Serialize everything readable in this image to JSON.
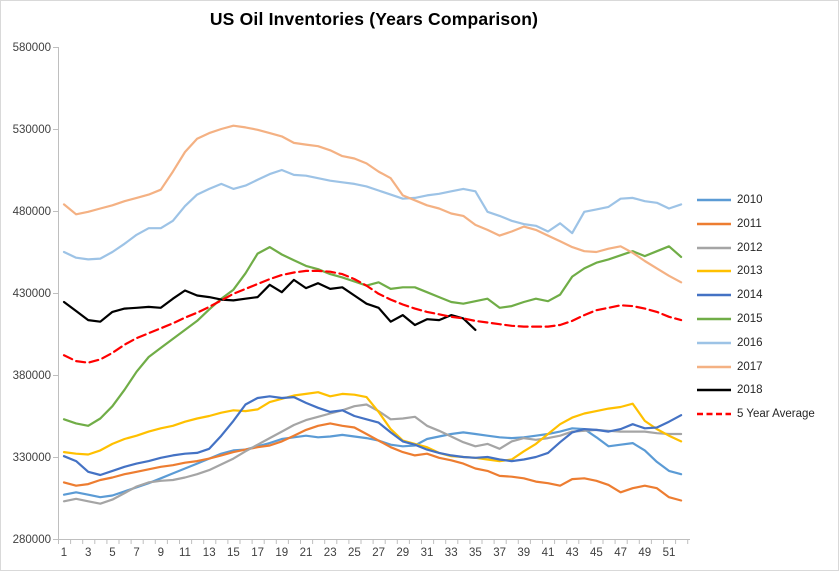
{
  "title": "US Oil Inventories (Years Comparison)",
  "chart_data": {
    "type": "line",
    "title": "US Oil Inventories (Years Comparison)",
    "xlabel": "",
    "ylabel": "",
    "x_tick_labels": [
      1,
      3,
      5,
      7,
      9,
      11,
      13,
      15,
      17,
      19,
      21,
      23,
      25,
      27,
      29,
      31,
      33,
      35,
      37,
      39,
      41,
      43,
      45,
      47,
      49,
      51
    ],
    "x_range": [
      1,
      52
    ],
    "y_axis": {
      "min": 280000,
      "max": 580000,
      "step": 50000,
      "tick_labels": [
        "280000",
        "330000",
        "380000",
        "430000",
        "480000",
        "530000",
        "580000"
      ]
    },
    "grid": false,
    "legend_position": "right",
    "axis_color": "#bfbfbf",
    "label_color": "#404040",
    "series": [
      {
        "name": "2010",
        "color": "#5B9BD5",
        "style": "solid",
        "values": [
          307000,
          308500,
          307000,
          305500,
          306500,
          309000,
          311500,
          314000,
          317000,
          320000,
          323000,
          326000,
          329000,
          332000,
          334000,
          334500,
          336500,
          338500,
          341000,
          342000,
          343000,
          342000,
          342500,
          343500,
          342500,
          341500,
          340000,
          337500,
          336500,
          337000,
          341000,
          342500,
          344000,
          345000,
          344000,
          343000,
          342000,
          341500,
          342000,
          343000,
          344000,
          345500,
          347500,
          347000,
          342000,
          336500,
          337500,
          338500,
          334000,
          327000,
          321500,
          319500
        ]
      },
      {
        "name": "2011",
        "color": "#ED7D31",
        "style": "solid",
        "values": [
          314500,
          312500,
          313500,
          316000,
          317500,
          319500,
          321000,
          322500,
          324000,
          325000,
          326500,
          327500,
          329000,
          331000,
          333000,
          334500,
          336000,
          337000,
          339500,
          343000,
          346500,
          349000,
          350500,
          349000,
          348000,
          344000,
          340000,
          336000,
          333000,
          331000,
          332000,
          329500,
          328000,
          326000,
          323000,
          321500,
          318500,
          318000,
          317000,
          315000,
          314000,
          312500,
          316500,
          317000,
          315500,
          313000,
          308500,
          311000,
          312500,
          311000,
          305500,
          303500
        ]
      },
      {
        "name": "2012",
        "color": "#A5A5A5",
        "style": "solid",
        "values": [
          303000,
          304500,
          303000,
          301500,
          304000,
          308000,
          312000,
          314500,
          315500,
          316000,
          317500,
          319500,
          322000,
          325500,
          329000,
          333500,
          337500,
          341500,
          345500,
          349500,
          352500,
          354500,
          356500,
          358500,
          361000,
          362000,
          358000,
          353000,
          353500,
          354500,
          349000,
          346000,
          342500,
          339000,
          336500,
          338000,
          335000,
          339500,
          341500,
          340500,
          341500,
          343000,
          345500,
          346000,
          346500,
          346000,
          345500,
          345500,
          345500,
          344500,
          344000,
          344000
        ]
      },
      {
        "name": "2013",
        "color": "#FFC000",
        "style": "solid",
        "values": [
          333000,
          332000,
          331500,
          334000,
          338000,
          341000,
          343000,
          345500,
          347500,
          349000,
          351500,
          353500,
          355000,
          357000,
          358500,
          358000,
          359000,
          363500,
          365500,
          367500,
          368500,
          369500,
          367000,
          368500,
          368000,
          366500,
          357500,
          347000,
          340000,
          338000,
          336000,
          332500,
          330500,
          330000,
          329500,
          328500,
          327500,
          328500,
          333500,
          338000,
          344000,
          350000,
          354000,
          356500,
          358000,
          359500,
          360500,
          362500,
          352000,
          347000,
          343000,
          339500
        ]
      },
      {
        "name": "2014",
        "color": "#4472C4",
        "style": "solid",
        "values": [
          330500,
          327500,
          321000,
          319000,
          321500,
          324000,
          326000,
          327500,
          329500,
          331000,
          332000,
          332500,
          335000,
          343000,
          352000,
          362000,
          366000,
          367000,
          366000,
          366500,
          363000,
          360000,
          357500,
          358500,
          355000,
          353000,
          351000,
          345000,
          339500,
          337500,
          334500,
          332500,
          331000,
          330000,
          329500,
          330000,
          328500,
          327500,
          328500,
          330000,
          332500,
          339000,
          345000,
          347000,
          346500,
          345500,
          347000,
          350000,
          347500,
          348000,
          351500,
          355500
        ]
      },
      {
        "name": "2015",
        "color": "#70AD47",
        "style": "solid",
        "values": [
          353000,
          350500,
          349000,
          353500,
          361000,
          371000,
          382000,
          391000,
          396500,
          402000,
          407500,
          413000,
          420000,
          426500,
          432000,
          442000,
          454000,
          458000,
          453500,
          450000,
          446500,
          444500,
          441500,
          439500,
          437000,
          434500,
          436500,
          432500,
          433500,
          433500,
          430500,
          427500,
          424500,
          423500,
          425000,
          426500,
          421000,
          422000,
          424500,
          426500,
          425000,
          429000,
          440000,
          445000,
          448500,
          450500,
          453000,
          455500,
          452500,
          455500,
          458500,
          452000
        ]
      },
      {
        "name": "2016",
        "color": "#9DC3E6",
        "style": "solid",
        "values": [
          455000,
          451500,
          450500,
          451000,
          455000,
          460000,
          465500,
          469500,
          469500,
          474000,
          483000,
          490000,
          493500,
          496500,
          493500,
          495500,
          499000,
          502500,
          505000,
          502000,
          501500,
          500000,
          498500,
          497500,
          496500,
          495000,
          492500,
          490000,
          487500,
          488000,
          489500,
          490500,
          492000,
          493500,
          492000,
          479500,
          477000,
          474000,
          472000,
          471000,
          467500,
          472500,
          466500,
          479500,
          481000,
          482500,
          487500,
          488000,
          486000,
          485000,
          481500,
          484000
        ]
      },
      {
        "name": "2017",
        "color": "#F4B183",
        "style": "solid",
        "values": [
          484000,
          478000,
          479500,
          481500,
          483500,
          486000,
          488000,
          490000,
          493000,
          504000,
          516000,
          524000,
          527500,
          530000,
          532000,
          531000,
          529500,
          527500,
          525500,
          521500,
          520500,
          519500,
          517000,
          513500,
          512000,
          509000,
          504000,
          500000,
          489500,
          486500,
          483500,
          481500,
          478500,
          477000,
          471500,
          468500,
          465000,
          467500,
          470500,
          468500,
          465000,
          461500,
          458000,
          455500,
          455000,
          457000,
          458500,
          454500,
          449500,
          445000,
          440500,
          436500
        ]
      },
      {
        "name": "2018",
        "color": "#000000",
        "style": "solid",
        "values": [
          424500,
          419000,
          413500,
          412500,
          418500,
          420500,
          421000,
          421500,
          421000,
          426500,
          431500,
          428500,
          427500,
          426000,
          425500,
          426500,
          427500,
          435000,
          430500,
          438000,
          433000,
          436000,
          432500,
          433500,
          428500,
          423500,
          421000,
          412500,
          416500,
          410500,
          414000,
          413500,
          416500,
          414500,
          407500
        ]
      },
      {
        "name": "5 Year Average",
        "color": "#FF0000",
        "style": "dashed",
        "values": [
          392000,
          388500,
          387500,
          389500,
          393500,
          398500,
          402500,
          405500,
          408500,
          411500,
          415000,
          418000,
          421500,
          425500,
          429500,
          432500,
          435500,
          438500,
          441000,
          442500,
          443500,
          443500,
          443000,
          441500,
          438500,
          434500,
          429500,
          426000,
          423000,
          420500,
          418500,
          417000,
          415500,
          414500,
          413000,
          412000,
          411000,
          410000,
          409500,
          409500,
          409500,
          410500,
          413000,
          416500,
          419500,
          421000,
          422500,
          422000,
          420500,
          418500,
          415500,
          413500
        ]
      }
    ]
  }
}
